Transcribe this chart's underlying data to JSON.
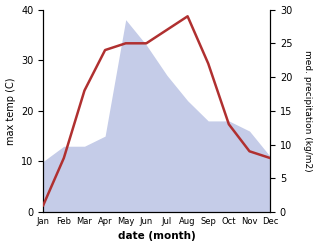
{
  "months": [
    "Jan",
    "Feb",
    "Mar",
    "Apr",
    "May",
    "Jun",
    "Jul",
    "Aug",
    "Sep",
    "Oct",
    "Nov",
    "Dec"
  ],
  "temperature": [
    10,
    13,
    13,
    15,
    38,
    33,
    27,
    22,
    18,
    18,
    16,
    11
  ],
  "precipitation": [
    1,
    8,
    18,
    24,
    25,
    25,
    27,
    29,
    22,
    13,
    9,
    8
  ],
  "temp_fill_color": "#c5cce8",
  "precip_color": "#b03030",
  "xlabel": "date (month)",
  "ylabel_left": "max temp (C)",
  "ylabel_right": "med. precipitation (kg/m2)",
  "ylim_left": [
    0,
    40
  ],
  "ylim_right": [
    0,
    30
  ],
  "yticks_left": [
    0,
    10,
    20,
    30,
    40
  ],
  "yticks_right": [
    0,
    5,
    10,
    15,
    20,
    25,
    30
  ]
}
